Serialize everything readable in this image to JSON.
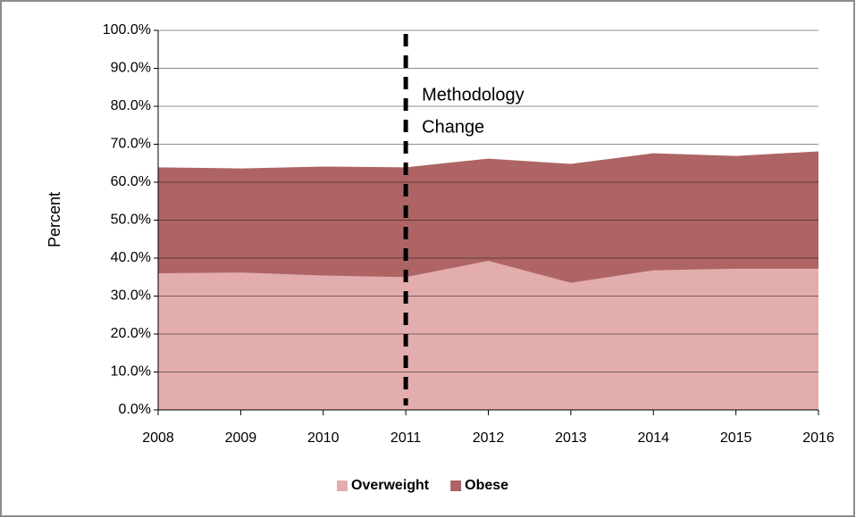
{
  "chart_data": {
    "type": "stacked-area",
    "y_label": "Percent",
    "x": [
      2008,
      2009,
      2010,
      2011,
      2012,
      2013,
      2014,
      2015,
      2016
    ],
    "xlim": [
      2008,
      2016
    ],
    "xticks": [
      2008,
      2009,
      2010,
      2011,
      2012,
      2013,
      2014,
      2015,
      2016
    ],
    "ylim": [
      0,
      100
    ],
    "yticks": [
      {
        "value": 0,
        "label": "0.0%"
      },
      {
        "value": 10,
        "label": "10.0%"
      },
      {
        "value": 20,
        "label": "20.0%"
      },
      {
        "value": 30,
        "label": "30.0%"
      },
      {
        "value": 40,
        "label": "40.0%"
      },
      {
        "value": 50,
        "label": "50.0%"
      },
      {
        "value": 60,
        "label": "60.0%"
      },
      {
        "value": 70,
        "label": "70.0%"
      },
      {
        "value": 80,
        "label": "80.0%"
      },
      {
        "value": 90,
        "label": "90.0%"
      },
      {
        "value": 100,
        "label": "100.0%"
      }
    ],
    "grid": true,
    "legend": "bottom",
    "series": [
      {
        "name": "Overweight",
        "color": "#e3adad",
        "values": [
          36.0,
          36.2,
          35.4,
          35.0,
          39.3,
          33.5,
          36.8,
          37.2,
          37.2
        ]
      },
      {
        "name": "Obese",
        "color": "#ae6464",
        "values": [
          27.8,
          27.3,
          28.6,
          28.8,
          26.8,
          31.2,
          30.7,
          29.6,
          30.8
        ]
      }
    ],
    "annotation": {
      "x": 2011,
      "lines": [
        "Methodology",
        "Change"
      ]
    }
  }
}
